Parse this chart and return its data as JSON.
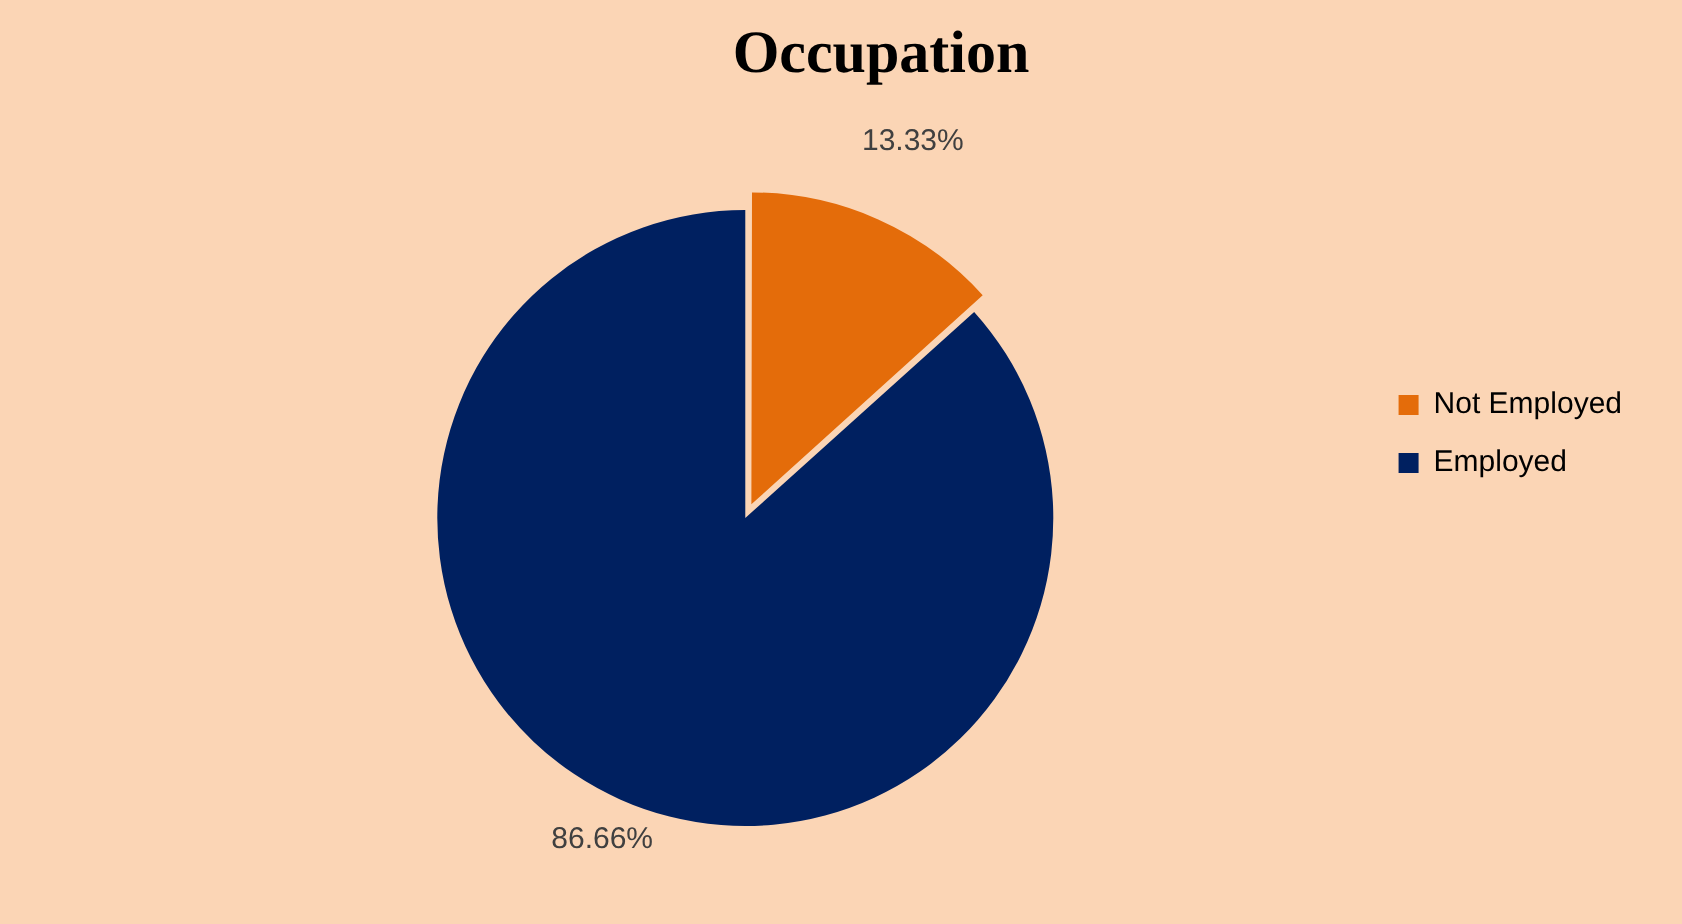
{
  "chart_data": {
    "type": "pie",
    "title": "Occupation",
    "categories": [
      "Not Employed",
      "Employed"
    ],
    "values": [
      13.33,
      86.66
    ],
    "colors": [
      "#e46c0a",
      "#002060"
    ],
    "value_labels": [
      "13.33%",
      "86.66%"
    ],
    "legend": "right"
  }
}
